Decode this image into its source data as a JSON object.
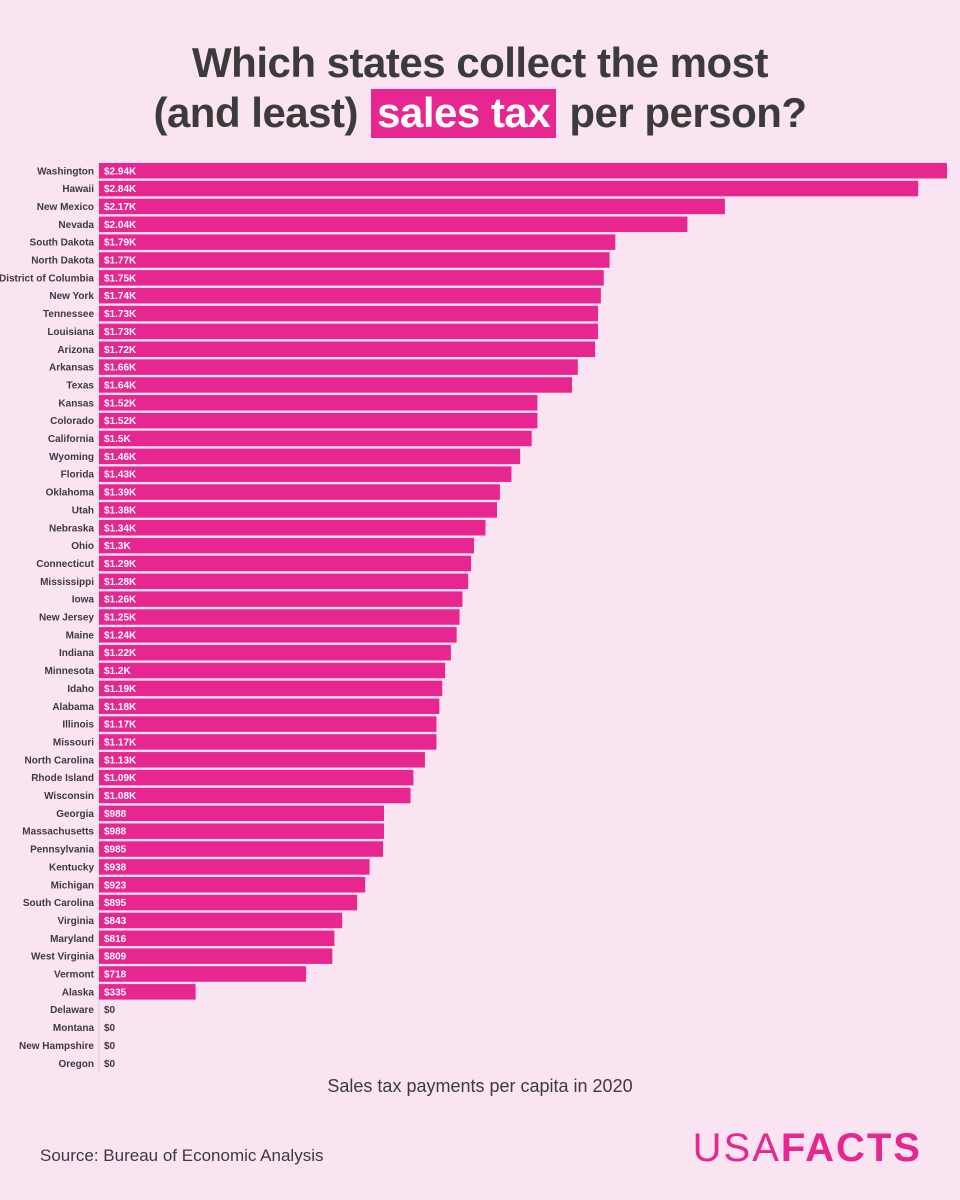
{
  "title": {
    "line1": "Which states collect the most",
    "line2_before": "(and least)",
    "line2_highlight": "sales tax",
    "line2_after": "per person?"
  },
  "colors": {
    "bar": "#e8268f",
    "background": "#fbe4f1",
    "text": "#3b3b3b"
  },
  "chart_data": {
    "type": "bar",
    "orientation": "horizontal",
    "xlabel": "Sales tax payments per capita in 2020",
    "xlim": [
      0,
      2940
    ],
    "grid": false,
    "legend": "none",
    "categories": [
      "Washington",
      "Hawaii",
      "New Mexico",
      "Nevada",
      "South Dakota",
      "North Dakota",
      "District of Columbia",
      "New York",
      "Tennessee",
      "Louisiana",
      "Arizona",
      "Arkansas",
      "Texas",
      "Kansas",
      "Colorado",
      "California",
      "Wyoming",
      "Florida",
      "Oklahoma",
      "Utah",
      "Nebraska",
      "Ohio",
      "Connecticut",
      "Mississippi",
      "Iowa",
      "New Jersey",
      "Maine",
      "Indiana",
      "Minnesota",
      "Idaho",
      "Alabama",
      "Illinois",
      "Missouri",
      "North Carolina",
      "Rhode Island",
      "Wisconsin",
      "Georgia",
      "Massachusetts",
      "Pennsylvania",
      "Kentucky",
      "Michigan",
      "South Carolina",
      "Virginia",
      "Maryland",
      "West Virginia",
      "Vermont",
      "Alaska",
      "Delaware",
      "Montana",
      "New Hampshire",
      "Oregon"
    ],
    "values": [
      2940,
      2840,
      2170,
      2040,
      1790,
      1770,
      1750,
      1740,
      1730,
      1730,
      1720,
      1660,
      1640,
      1520,
      1520,
      1500,
      1460,
      1430,
      1390,
      1380,
      1340,
      1300,
      1290,
      1280,
      1260,
      1250,
      1240,
      1220,
      1200,
      1190,
      1180,
      1170,
      1170,
      1130,
      1090,
      1080,
      988,
      988,
      985,
      938,
      923,
      895,
      843,
      816,
      809,
      718,
      335,
      0,
      0,
      0,
      0
    ],
    "data_labels": [
      "$2.94K",
      "$2.84K",
      "$2.17K",
      "$2.04K",
      "$1.79K",
      "$1.77K",
      "$1.75K",
      "$1.74K",
      "$1.73K",
      "$1.73K",
      "$1.72K",
      "$1.66K",
      "$1.64K",
      "$1.52K",
      "$1.52K",
      "$1.5K",
      "$1.46K",
      "$1.43K",
      "$1.39K",
      "$1.38K",
      "$1.34K",
      "$1.3K",
      "$1.29K",
      "$1.28K",
      "$1.26K",
      "$1.25K",
      "$1.24K",
      "$1.22K",
      "$1.2K",
      "$1.19K",
      "$1.18K",
      "$1.17K",
      "$1.17K",
      "$1.13K",
      "$1.09K",
      "$1.08K",
      "$988",
      "$988",
      "$985",
      "$938",
      "$923",
      "$895",
      "$843",
      "$816",
      "$809",
      "$718",
      "$335",
      "$0",
      "$0",
      "$0",
      "$0"
    ]
  },
  "footer": {
    "source": "Source: Bureau of Economic Analysis",
    "logo_light": "USA",
    "logo_bold": "FACTS"
  }
}
